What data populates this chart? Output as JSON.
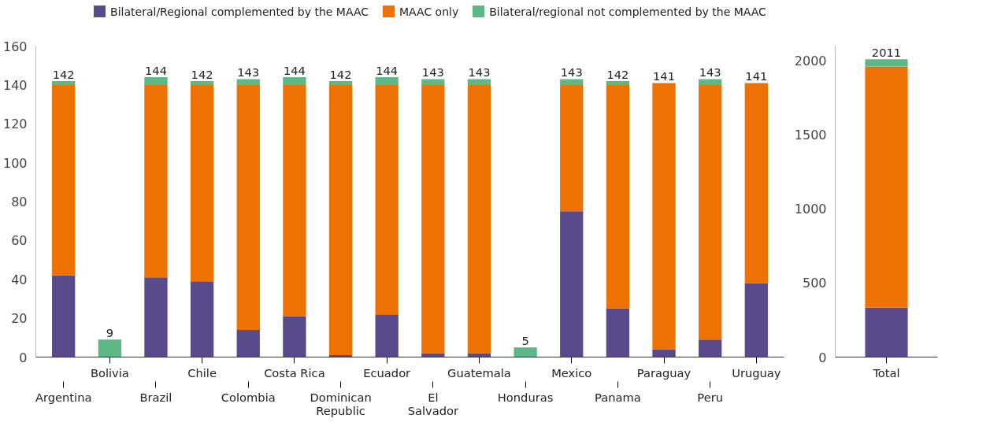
{
  "chart_data": [
    {
      "type": "bar",
      "stacked": true,
      "categories": [
        "Argentina",
        "Bolivia",
        "Brazil",
        "Chile",
        "Colombia",
        "Costa Rica",
        "Dominican Republic",
        "Ecuador",
        "El Salvador",
        "Guatemala",
        "Honduras",
        "Mexico",
        "Panama",
        "Paraguay",
        "Peru",
        "Uruguay"
      ],
      "series": [
        {
          "name": "Bilateral/Regional complemented by the MAAC",
          "color": "#594a8c",
          "values": [
            42,
            0,
            41,
            39,
            14,
            21,
            1,
            22,
            2,
            2,
            0,
            75,
            25,
            4,
            9,
            38
          ]
        },
        {
          "name": "MAAC only",
          "color": "#ee7203",
          "values": [
            98,
            0,
            99,
            101,
            126,
            119,
            139,
            118,
            138,
            138,
            0,
            65,
            115,
            137,
            131,
            103
          ]
        },
        {
          "name": "Bilateral/regional not complemented by the MAAC",
          "color": "#5cb985",
          "values": [
            2,
            9,
            4,
            2,
            3,
            4,
            2,
            4,
            3,
            3,
            5,
            3,
            2,
            0,
            3,
            0
          ]
        }
      ],
      "totals": [
        "142",
        "9",
        "144",
        "142",
        "143",
        "144",
        "142",
        "144",
        "143",
        "143",
        "5",
        "143",
        "142",
        "141",
        "143",
        "141"
      ],
      "ylim": [
        0,
        160
      ],
      "yticks": [
        0,
        20,
        40,
        60,
        80,
        100,
        120,
        140,
        160
      ],
      "grid": false,
      "legend": "top"
    },
    {
      "type": "bar",
      "stacked": true,
      "categories": [
        "Total"
      ],
      "series": [
        {
          "color": "#594a8c",
          "values": [
            335
          ]
        },
        {
          "color": "#ee7203",
          "values": [
            1627
          ]
        },
        {
          "color": "#5cb985",
          "values": [
            49
          ]
        }
      ],
      "totals": [
        "2011"
      ],
      "ylim": [
        0,
        2100
      ],
      "yticks": [
        0,
        500,
        1000,
        1500,
        2000
      ],
      "grid": false
    }
  ]
}
